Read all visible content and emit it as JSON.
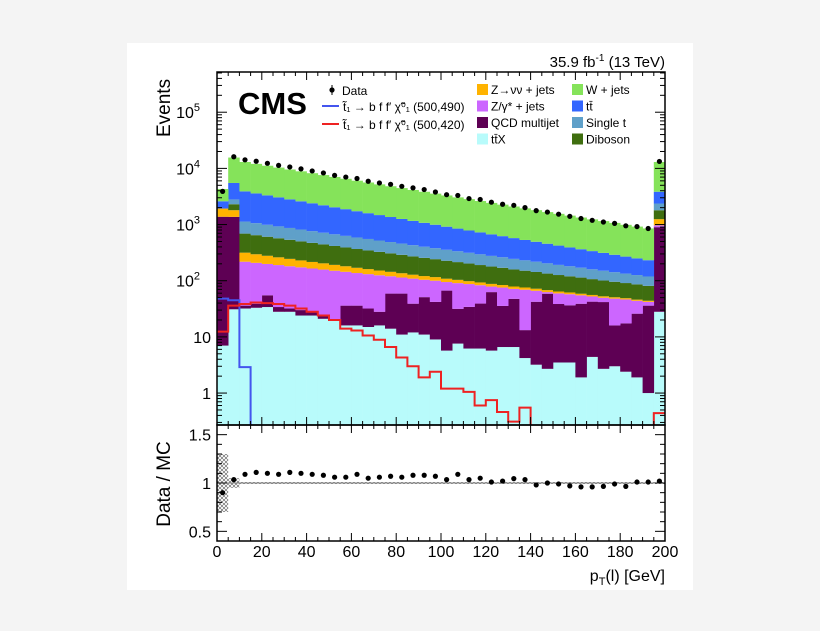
{
  "chart_data": {
    "type": "bar",
    "subtype": "stacked-histogram-with-ratio",
    "experiment_label": "CMS",
    "lumi": {
      "value": "35.9 fb",
      "exponent": "-1",
      "energy": " (13 TeV)"
    },
    "xlabel": {
      "main": "p",
      "sub": "T",
      "rest": "(l) [GeV]"
    },
    "ylabel": "Events",
    "ratio_ylabel": "Data / MC",
    "x_range": [
      0,
      200
    ],
    "bin_width": 5,
    "y_scale": "log",
    "ylim": [
      0.27,
      520000
    ],
    "ratio_ylim": [
      0.4,
      1.6
    ],
    "x_ticks": [
      "0",
      "20",
      "40",
      "60",
      "80",
      "100",
      "120",
      "140",
      "160",
      "180",
      "200"
    ],
    "x_tick_values": [
      0,
      20,
      40,
      60,
      80,
      100,
      120,
      140,
      160,
      180,
      200
    ],
    "y_ticks": [
      {
        "value": 1,
        "base": "1",
        "exp": ""
      },
      {
        "value": 10,
        "base": "10",
        "exp": ""
      },
      {
        "value": 100,
        "base": "10",
        "exp": "2"
      },
      {
        "value": 1000,
        "base": "10",
        "exp": "3"
      },
      {
        "value": 10000,
        "base": "10",
        "exp": "4"
      },
      {
        "value": 100000,
        "base": "10",
        "exp": "5"
      }
    ],
    "ratio_ticks": [
      {
        "value": 0.5,
        "label": "0.5"
      },
      {
        "value": 1,
        "label": "1"
      },
      {
        "value": 1.5,
        "label": "1.5"
      }
    ],
    "legend_placement": "top",
    "stack_order_bottom_to_top": [
      "ttX",
      "QCD multijet",
      "Z/γ* + jets",
      "Z→νν + jets",
      "Diboson",
      "Single t",
      "tt̄",
      "W + jets"
    ],
    "series": [
      {
        "name": "tt̄X",
        "color": "#b8fbfb",
        "values": [
          7,
          31,
          32,
          33,
          34,
          28,
          28,
          24,
          24,
          21,
          20,
          16,
          16,
          15,
          16,
          14,
          11,
          12,
          11,
          9,
          5.7,
          7.6,
          6.2,
          6.2,
          5.7,
          6.6,
          6.6,
          4.2,
          3.2,
          2.7,
          3.5,
          3.5,
          1.9,
          4.4,
          2.7,
          3.0,
          2.4,
          1.9,
          1.0,
          28
        ]
      },
      {
        "name": "QCD multijet",
        "color": "#5e0054",
        "values": [
          1370,
          1340,
          4,
          6,
          21,
          6,
          4,
          6,
          4,
          3,
          0.5,
          20,
          20,
          17,
          12,
          45,
          48,
          27,
          40,
          33,
          61,
          24,
          28,
          33,
          57,
          29,
          41,
          9,
          39,
          56,
          35,
          33,
          37,
          38,
          39,
          13,
          15,
          24,
          35,
          870
        ]
      },
      {
        "name": "Z/γ* + jets",
        "color": "#cc66ff",
        "values": [
          0,
          0,
          182,
          169,
          144,
          156,
          149,
          143,
          137,
          134,
          130,
          108,
          101,
          99,
          97,
          61,
          55,
          70,
          53,
          58,
          28,
          59,
          53,
          44,
          16,
          40,
          24,
          56,
          24,
          4,
          21,
          21,
          16,
          10,
          8,
          32,
          29,
          18,
          6,
          70
        ]
      },
      {
        "name": "Z→νν + jets",
        "color": "#ffb300",
        "values": [
          550,
          430,
          98,
          88,
          79,
          71,
          64,
          57,
          51,
          46,
          41,
          37,
          33,
          30,
          27,
          24,
          22,
          19,
          17,
          16,
          14,
          13,
          11,
          10,
          9.1,
          8.2,
          7.3,
          6.6,
          5.9,
          5.3,
          4.8,
          4.3,
          3.8,
          3.4,
          3.1,
          2.8,
          2.5,
          2.2,
          2.0,
          280
        ]
      },
      {
        "name": "Diboson",
        "color": "#3f6e0f",
        "values": [
          0,
          500,
          374,
          351,
          329,
          309,
          290,
          272,
          255,
          239,
          224,
          210,
          197,
          185,
          174,
          163,
          153,
          143,
          134,
          126,
          118,
          111,
          104,
          97,
          91,
          86,
          80,
          75,
          71,
          66,
          62,
          58,
          55,
          51,
          48,
          45,
          42,
          40,
          37,
          550
        ]
      },
      {
        "name": "Single t",
        "color": "#5fa0c9",
        "values": [
          0,
          500,
          440,
          411,
          384,
          358,
          335,
          313,
          292,
          273,
          255,
          238,
          222,
          208,
          194,
          181,
          169,
          158,
          148,
          138,
          129,
          120,
          112,
          105,
          98,
          92,
          86,
          80,
          75,
          70,
          65,
          61,
          57,
          53,
          50,
          46,
          43,
          40,
          38,
          570
        ]
      },
      {
        "name": "tt̄",
        "color": "#3366ff",
        "values": [
          670,
          2700,
          2770,
          2530,
          2320,
          2120,
          1940,
          1780,
          1630,
          1490,
          1360,
          1250,
          1140,
          1040,
          955,
          874,
          800,
          732,
          670,
          613,
          561,
          513,
          470,
          430,
          393,
          360,
          329,
          301,
          276,
          252,
          231,
          211,
          193,
          177,
          162,
          148,
          135,
          124,
          113,
          1470
        ]
      },
      {
        "name": "W + jets",
        "color": "#85e35a",
        "values": [
          1700,
          10100,
          9100,
          8450,
          7840,
          7280,
          6750,
          6270,
          5820,
          5400,
          5010,
          4650,
          4310,
          4010,
          3720,
          3450,
          3200,
          2970,
          2760,
          2560,
          2380,
          2200,
          2050,
          1900,
          1760,
          1640,
          1520,
          1410,
          1310,
          1210,
          1130,
          1050,
          970,
          900,
          840,
          780,
          720,
          670,
          620,
          9160
        ]
      }
    ],
    "signals": [
      {
        "name": "t̃₁ → b f f′ χ̃⁰₁ (500,490)",
        "color": "#4455ee",
        "values": [
          48,
          45,
          2.9,
          0,
          0,
          0,
          0,
          0,
          0,
          0,
          0,
          0,
          0,
          0,
          0,
          0,
          0,
          0,
          0,
          0,
          0,
          0,
          0,
          0,
          0,
          0,
          0,
          0,
          0,
          0,
          0,
          0,
          0,
          0,
          0,
          0,
          0,
          0,
          0,
          0
        ]
      },
      {
        "name": "t̃₁ → b f f′ χ̃⁰₁ (500,420)",
        "color": "#ee2222",
        "values": [
          12.4,
          36,
          38.5,
          41,
          40,
          38.5,
          36,
          32,
          28,
          24,
          20,
          14,
          13,
          10.6,
          8.9,
          6.6,
          4.3,
          3.0,
          1.9,
          2.4,
          1.2,
          1.2,
          1.05,
          0.6,
          0.75,
          0.46,
          0.31,
          0.55,
          0,
          0,
          0,
          0,
          0,
          0,
          0,
          0,
          0,
          0,
          0,
          0.44
        ]
      }
    ],
    "data": {
      "name": "Data",
      "values": [
        3900,
        16100,
        14200,
        13400,
        12300,
        11300,
        10600,
        9800,
        9000,
        8300,
        7500,
        7000,
        6600,
        5900,
        5500,
        5200,
        4800,
        4500,
        4200,
        3800,
        3400,
        3300,
        2900,
        2800,
        2500,
        2300,
        2200,
        2000,
        1770,
        1670,
        1530,
        1400,
        1280,
        1190,
        1110,
        1050,
        950,
        920,
        850,
        13300
      ]
    },
    "ratio": [
      0.9,
      1.035,
      1.09,
      1.11,
      1.1,
      1.09,
      1.11,
      1.1,
      1.09,
      1.08,
      1.06,
      1.06,
      1.09,
      1.05,
      1.06,
      1.07,
      1.06,
      1.08,
      1.08,
      1.07,
      1.035,
      1.09,
      1.035,
      1.05,
      1.01,
      1.02,
      1.045,
      1.035,
      0.98,
      1.0,
      0.99,
      0.97,
      0.96,
      0.96,
      0.965,
      0.99,
      0.965,
      1.01,
      1.01,
      1.02
    ],
    "ratio_uncertainty": [
      0.3,
      0.05,
      0.01,
      0.01,
      0.01,
      0.01,
      0.01,
      0.01,
      0.01,
      0.01,
      0.01,
      0.01,
      0.01,
      0.01,
      0.01,
      0.01,
      0.01,
      0.01,
      0.01,
      0.01,
      0.01,
      0.01,
      0.01,
      0.01,
      0.01,
      0.01,
      0.01,
      0.01,
      0.01,
      0.01,
      0.01,
      0.01,
      0.01,
      0.01,
      0.01,
      0.01,
      0.01,
      0.01,
      0.01,
      0.01
    ],
    "legend": {
      "data": "Data",
      "signal_1": "t̃₁ → b f f′ χ̃⁰₁ (500,490)",
      "signal_2": "t̃₁ → b f f′ χ̃⁰₁ (500,420)",
      "col1": [
        "Z→νν + jets",
        "Z/γ* + jets",
        "QCD multijet",
        "tt̄X"
      ],
      "col2": [
        "W + jets",
        "tt̄",
        "Single t",
        "Diboson"
      ]
    }
  }
}
